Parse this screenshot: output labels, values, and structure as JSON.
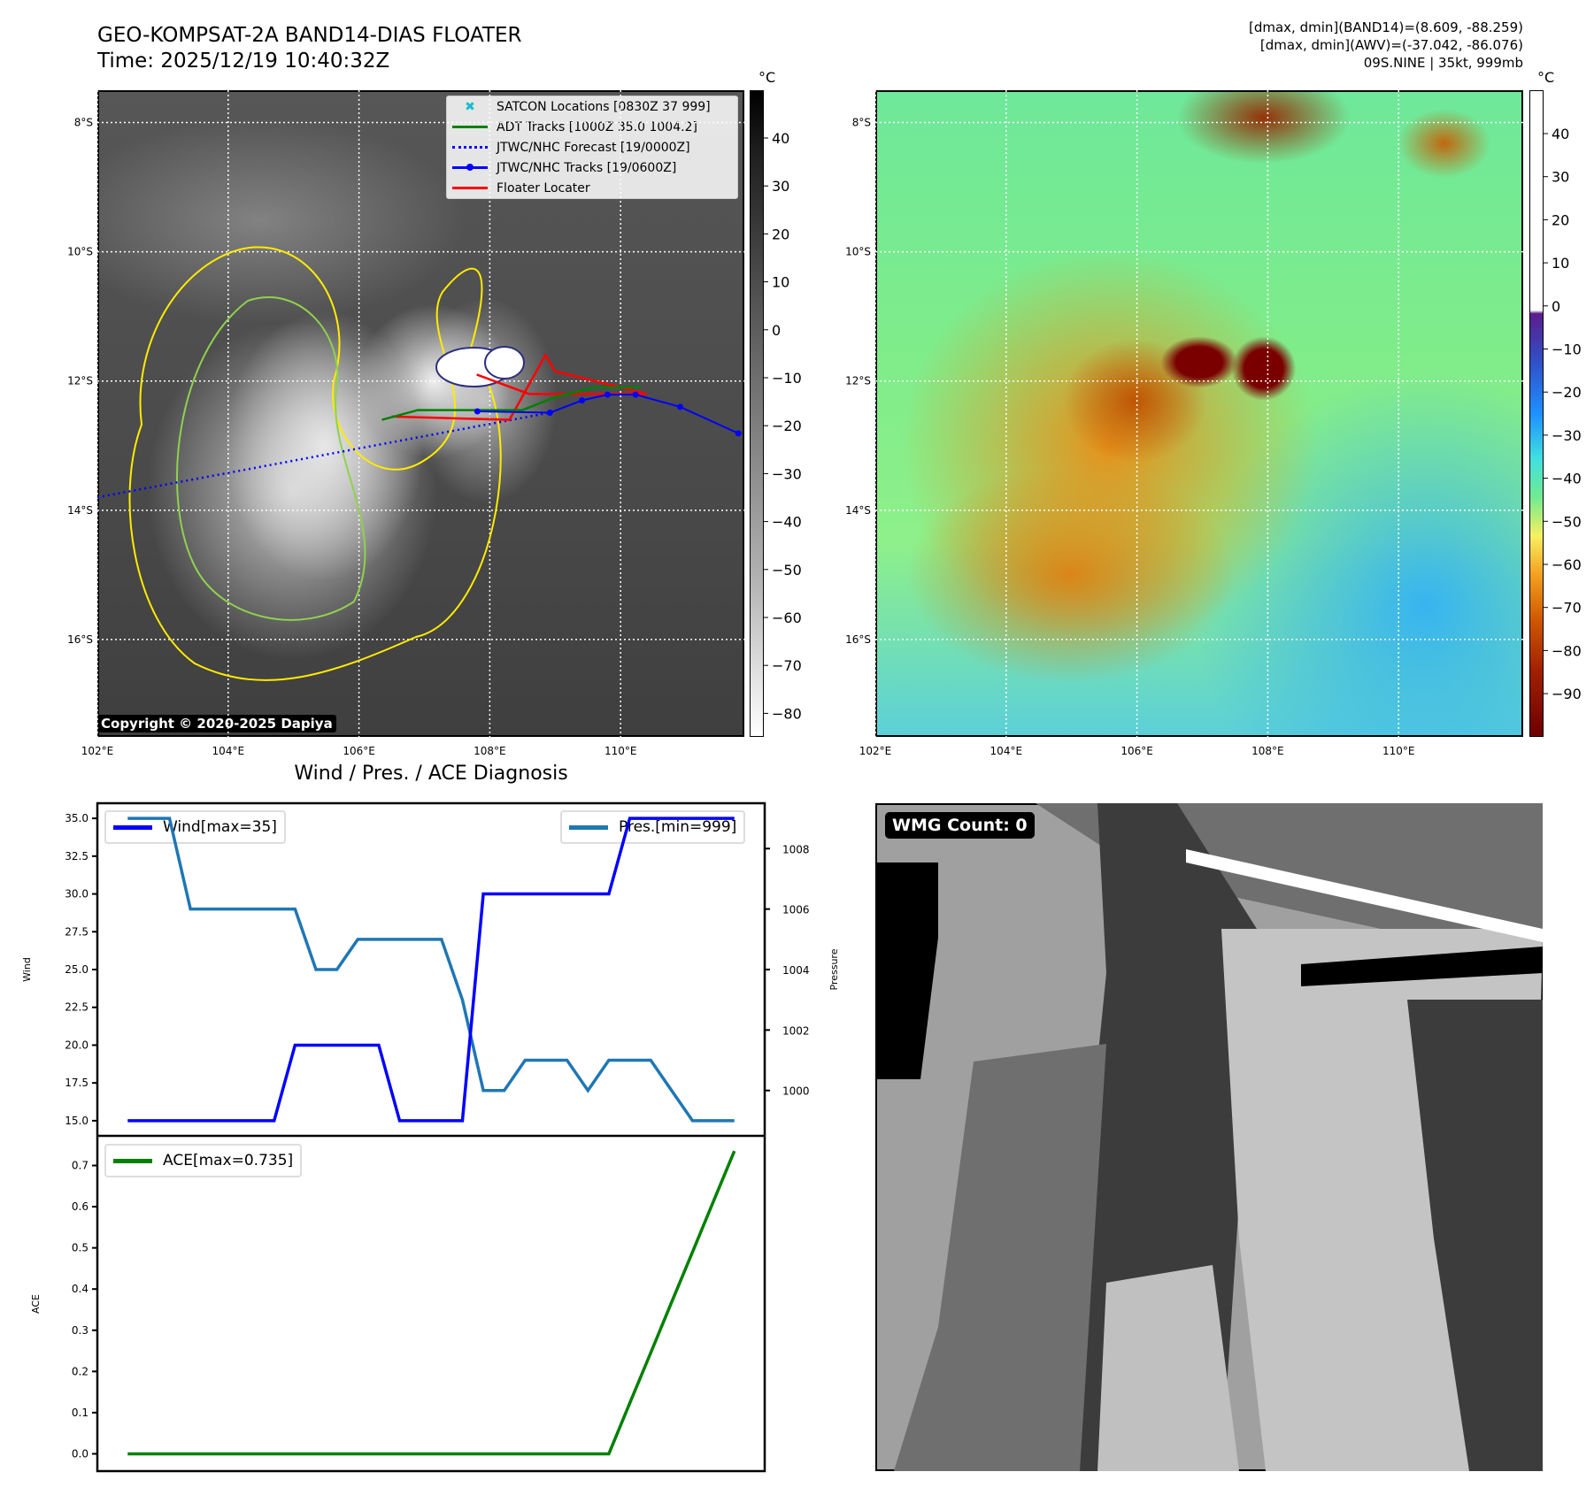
{
  "header": {
    "title_line1": "GEO-KOMPSAT-2A BAND14-DIAS FLOATER",
    "title_line2": "Time: 2025/12/19 10:40:32Z",
    "info_line1": "[dmax, dmin](BAND14)=(8.609, -88.259)",
    "info_line2": "[dmax, dmin](AWV)=(-37.042, -86.076)",
    "info_line3": "09S.NINE | 35kt, 999mb"
  },
  "map": {
    "lat_labels": [
      "8°S",
      "10°S",
      "12°S",
      "14°S",
      "16°S"
    ],
    "lat_values": [
      8,
      10,
      12,
      14,
      16
    ],
    "lon_labels": [
      "102°E",
      "104°E",
      "106°E",
      "108°E",
      "110°E"
    ],
    "lon_values": [
      102,
      104,
      106,
      108,
      110
    ],
    "extent": {
      "lon": [
        102,
        111.9
      ],
      "lat_s": [
        7.5,
        17.5
      ]
    },
    "copyright": "Copyright © 2020-2025 Dapiya",
    "legend": [
      {
        "label": "SATCON Locations [0830Z 37 999]",
        "color": "#17becf"
      },
      {
        "label": "ADT Tracks [1000Z 35.0 1004.2]",
        "color": "#008000"
      },
      {
        "label": "JTWC/NHC Forecast [19/0000Z]",
        "color": "#0000ff"
      },
      {
        "label": "JTWC/NHC Tracks [19/0600Z]",
        "color": "#0000ff"
      },
      {
        "label": "Floater Locater",
        "color": "#ff0000"
      }
    ],
    "jtwc_track": [
      [
        107.81,
        12.47
      ],
      [
        108.92,
        12.49
      ],
      [
        109.41,
        12.3
      ],
      [
        109.8,
        12.21
      ],
      [
        110.23,
        12.21
      ],
      [
        110.91,
        12.4
      ],
      [
        111.8,
        12.81
      ]
    ],
    "jtwc_forecast": [
      [
        102.0,
        13.8
      ],
      [
        108.92,
        12.49
      ]
    ],
    "adt_track": [
      [
        106.35,
        12.6
      ],
      [
        106.9,
        12.45
      ],
      [
        108.5,
        12.45
      ],
      [
        109.0,
        12.25
      ],
      [
        109.6,
        12.1
      ],
      [
        110.3,
        12.1
      ]
    ],
    "floater": [
      [
        106.5,
        12.55
      ],
      [
        108.3,
        12.6
      ],
      [
        108.85,
        11.6
      ],
      [
        109.0,
        11.85
      ],
      [
        110.4,
        12.2
      ],
      [
        108.6,
        12.2
      ],
      [
        107.8,
        11.9
      ]
    ],
    "left_cbar_unit": "°C",
    "left_cbar_ticks": [
      "40",
      "30",
      "20",
      "10",
      "0",
      "−10",
      "−20",
      "−30",
      "−40",
      "−50",
      "−60",
      "−70",
      "−80"
    ],
    "left_cbar_values": [
      40,
      30,
      20,
      10,
      0,
      -10,
      -20,
      -30,
      -40,
      -50,
      -60,
      -70,
      -80
    ],
    "right_cbar_unit": "°C",
    "right_cbar_ticks": [
      "40",
      "30",
      "20",
      "10",
      "0",
      "−10",
      "−20",
      "−30",
      "−40",
      "−50",
      "−60",
      "−70",
      "−80",
      "−90"
    ],
    "right_cbar_values": [
      40,
      30,
      20,
      10,
      0,
      -10,
      -20,
      -30,
      -40,
      -50,
      -60,
      -70,
      -80,
      -90
    ]
  },
  "wmg": {
    "label": "WMG Count: 0"
  },
  "chart_data": [
    {
      "type": "line",
      "title": "Wind / Pres. / ACE Diagnosis",
      "x": [
        0,
        1,
        2,
        3,
        4,
        5,
        6,
        7,
        8,
        9,
        10,
        11,
        12,
        13,
        14,
        15,
        16,
        17,
        18,
        19,
        20,
        21,
        22,
        23,
        24,
        25,
        26,
        27,
        28,
        29
      ],
      "ylabel": "Wind",
      "y2label": "Pressure",
      "ylim": [
        14.0,
        36.0
      ],
      "y2lim": [
        998.5,
        1009.5
      ],
      "yticks": [
        "15.0",
        "17.5",
        "20.0",
        "22.5",
        "25.0",
        "27.5",
        "30.0",
        "32.5",
        "35.0"
      ],
      "ytick_values": [
        15,
        17.5,
        20,
        22.5,
        25,
        27.5,
        30,
        32.5,
        35
      ],
      "y2ticks": [
        "1000",
        "1002",
        "1004",
        "1006",
        "1008"
      ],
      "y2tick_values": [
        1000,
        1002,
        1004,
        1006,
        1008
      ],
      "series": [
        {
          "name": "Wind[max=35]",
          "axis": "left",
          "color": "#0000ff",
          "values": [
            15,
            15,
            15,
            15,
            15,
            15,
            15,
            15,
            20,
            20,
            20,
            20,
            20,
            15,
            15,
            15,
            15,
            30,
            30,
            30,
            30,
            30,
            30,
            30,
            35,
            35,
            35,
            35,
            35,
            35
          ]
        },
        {
          "name": "Pres.[min=999]",
          "axis": "right",
          "color": "#1f77b4",
          "values": [
            1009,
            1009,
            1009,
            1006,
            1006,
            1006,
            1006,
            1006,
            1006,
            1004,
            1004,
            1005,
            1005,
            1005,
            1005,
            1005,
            1003,
            1000,
            1000,
            1001,
            1001,
            1001,
            1000,
            1001,
            1001,
            1001,
            1000,
            999,
            999,
            999
          ]
        }
      ]
    },
    {
      "type": "line",
      "ylabel": "ACE",
      "ylim": [
        -0.042,
        0.772
      ],
      "yticks": [
        "0.0",
        "0.1",
        "0.2",
        "0.3",
        "0.4",
        "0.5",
        "0.6",
        "0.7"
      ],
      "ytick_values": [
        0,
        0.1,
        0.2,
        0.3,
        0.4,
        0.5,
        0.6,
        0.7
      ],
      "x": [
        0,
        1,
        2,
        3,
        4,
        5,
        6,
        7,
        8,
        9,
        10,
        11,
        12,
        13,
        14,
        15,
        16,
        17,
        18,
        19,
        20,
        21,
        22,
        23,
        24,
        25,
        26,
        27,
        28,
        29
      ],
      "series": [
        {
          "name": "ACE[max=0.735]",
          "color": "#008000",
          "values": [
            0,
            0,
            0,
            0,
            0,
            0,
            0,
            0,
            0,
            0,
            0,
            0,
            0,
            0,
            0,
            0,
            0,
            0,
            0,
            0,
            0,
            0,
            0,
            0,
            0.123,
            0.245,
            0.368,
            0.49,
            0.613,
            0.735
          ]
        }
      ]
    }
  ]
}
